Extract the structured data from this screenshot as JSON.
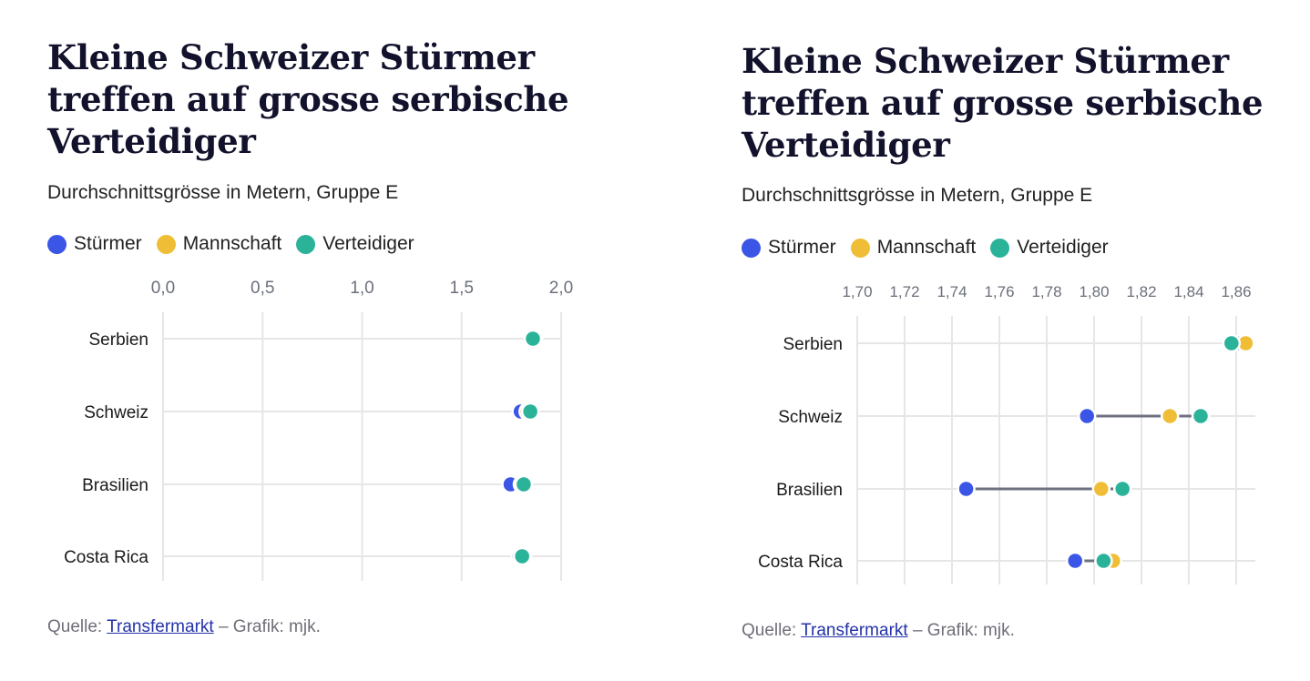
{
  "colors": {
    "stuermer": "#3b55e6",
    "mannschaft": "#efbe36",
    "verteidiger": "#2bb39a",
    "connector": "#6f7180",
    "grid": "#e6e6e6",
    "axis_text": "#6b6f7b"
  },
  "panels": [
    {
      "title": "Kleine Schweizer Stürmer treffen auf grosse serbische Verteidiger",
      "subtitle": "Durchschnittsgrösse in Metern, Gruppe E",
      "legend": [
        "Stürmer",
        "Mannschaft",
        "Verteidiger"
      ],
      "source_prefix": "Quelle: ",
      "source_link": "Transfermarkt",
      "source_suffix": " – Grafik: mjk."
    },
    {
      "title": "Kleine Schweizer Stürmer treffen auf grosse serbische Verteidiger",
      "subtitle": "Durchschnittsgrösse in Metern, Gruppe E",
      "legend": [
        "Stürmer",
        "Mannschaft",
        "Verteidiger"
      ],
      "source_prefix": "Quelle: ",
      "source_link": "Transfermarkt",
      "source_suffix": " – Grafik: mjk."
    }
  ],
  "chart_data": [
    {
      "type": "scatter",
      "categories": [
        "Serbien",
        "Schweiz",
        "Brasilien",
        "Costa Rica"
      ],
      "xlim": [
        0,
        2.0
      ],
      "xticks": [
        "0,0",
        "0,5",
        "1,0",
        "1,5",
        "2,0"
      ],
      "xtick_values": [
        0,
        0.5,
        1.0,
        1.5,
        2.0
      ],
      "grid": true,
      "connectors": false,
      "series": [
        {
          "name": "Stürmer",
          "values": [
            1.862,
            1.797,
            1.746,
            1.792
          ]
        },
        {
          "name": "Mannschaft",
          "values": [
            1.864,
            1.832,
            1.803,
            1.808
          ]
        },
        {
          "name": "Verteidiger",
          "values": [
            1.858,
            1.845,
            1.812,
            1.804
          ]
        }
      ]
    },
    {
      "type": "scatter",
      "categories": [
        "Serbien",
        "Schweiz",
        "Brasilien",
        "Costa Rica"
      ],
      "xlim": [
        1.7,
        1.865
      ],
      "xticks": [
        "1,70",
        "1,72",
        "1,74",
        "1,76",
        "1,78",
        "1,80",
        "1,82",
        "1,84",
        "1,86"
      ],
      "xtick_values": [
        1.7,
        1.72,
        1.74,
        1.76,
        1.78,
        1.8,
        1.82,
        1.84,
        1.86
      ],
      "grid": true,
      "connectors": true,
      "series": [
        {
          "name": "Stürmer",
          "values": [
            1.862,
            1.797,
            1.746,
            1.792
          ]
        },
        {
          "name": "Mannschaft",
          "values": [
            1.864,
            1.832,
            1.803,
            1.808
          ]
        },
        {
          "name": "Verteidiger",
          "values": [
            1.858,
            1.845,
            1.812,
            1.804
          ]
        }
      ]
    }
  ]
}
